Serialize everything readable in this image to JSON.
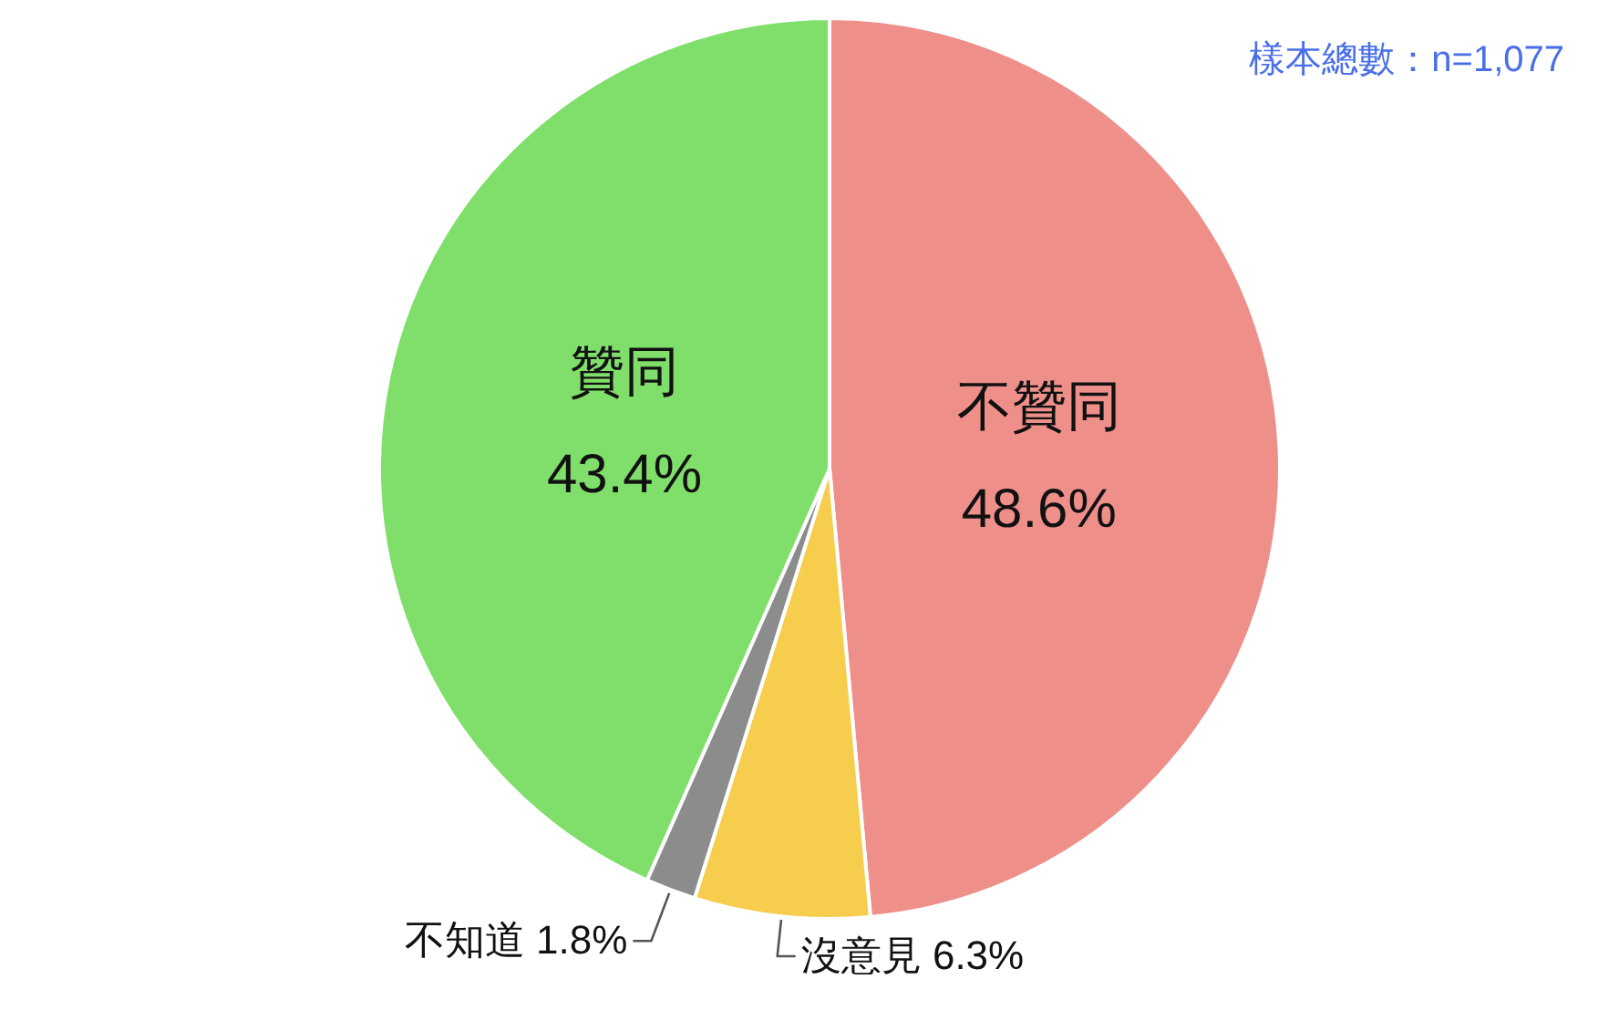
{
  "chart_data": {
    "type": "pie",
    "categories": [
      "不贊同",
      "沒意見",
      "不知道",
      "贊同"
    ],
    "values": [
      48.6,
      6.3,
      1.8,
      43.4
    ],
    "value_labels": [
      "48.6%",
      "6.3%",
      "1.8%",
      "43.4%"
    ],
    "colors": [
      "#ee8f8a",
      "#f6cd4c",
      "#8c8c8c",
      "#80de6b"
    ],
    "annotations": [
      "樣本總數：n=1,077"
    ]
  }
}
